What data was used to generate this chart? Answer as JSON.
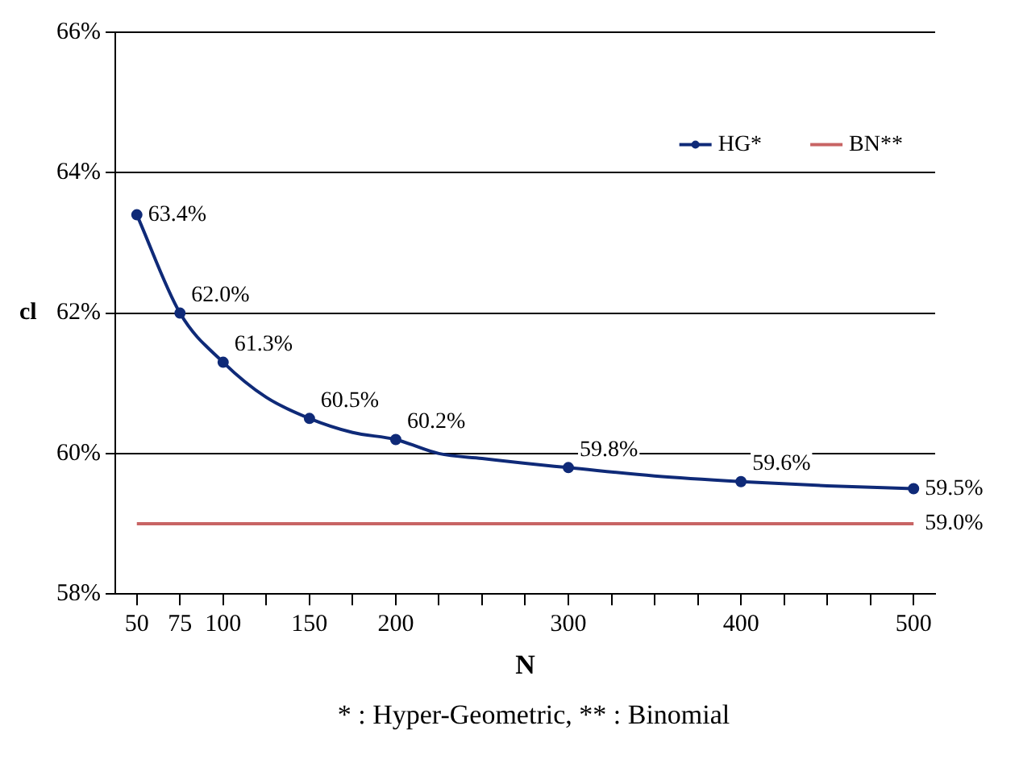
{
  "chart_data": {
    "type": "line",
    "xlabel": "N",
    "ylabel": "cl",
    "x": [
      50,
      75,
      100,
      125,
      150,
      175,
      200,
      225,
      250,
      275,
      300,
      350,
      400,
      450,
      500
    ],
    "series": [
      {
        "name": "HG*",
        "color": "#0f2a78",
        "marker": "circle",
        "values": [
          63.4,
          62.0,
          61.3,
          60.8,
          60.5,
          60.3,
          60.2,
          60.0,
          59.93,
          59.86,
          59.8,
          59.68,
          59.6,
          59.54,
          59.5
        ],
        "value_labels": [
          "63.4%",
          "62.0%",
          "61.3%",
          null,
          "60.5%",
          null,
          "60.2%",
          null,
          null,
          null,
          "59.8%",
          null,
          "59.6%",
          null,
          "59.5%"
        ]
      },
      {
        "name": "BN**",
        "color": "#c86464",
        "marker": "none",
        "x": [
          50,
          500
        ],
        "values": [
          59.0,
          59.0
        ],
        "value_labels": [
          null,
          "59.0%"
        ]
      }
    ],
    "xlim": [
      37.5,
      512.5
    ],
    "xticks": [
      50,
      75,
      100,
      {
        "value": 125,
        "label": null
      },
      150,
      {
        "value": 175,
        "label": null
      },
      200,
      {
        "value": 225,
        "label": null
      },
      {
        "value": 250,
        "label": null
      },
      {
        "value": 275,
        "label": null
      },
      300,
      {
        "value": 325,
        "label": null
      },
      {
        "value": 350,
        "label": null
      },
      {
        "value": 375,
        "label": null
      },
      400,
      {
        "value": 425,
        "label": null
      },
      {
        "value": 450,
        "label": null
      },
      {
        "value": 475,
        "label": null
      },
      500
    ],
    "ylim": [
      58,
      66
    ],
    "yticks": [
      {
        "value": 58,
        "label": "58%"
      },
      {
        "value": 60,
        "label": "60%"
      },
      {
        "value": 62,
        "label": "62%"
      },
      {
        "value": 64,
        "label": "64%"
      },
      {
        "value": 66,
        "label": "66%"
      }
    ],
    "grid": "y",
    "legend": "top right",
    "annotations": [
      "*  :  Hyper-Geometric,  **  :  Binomial"
    ]
  }
}
